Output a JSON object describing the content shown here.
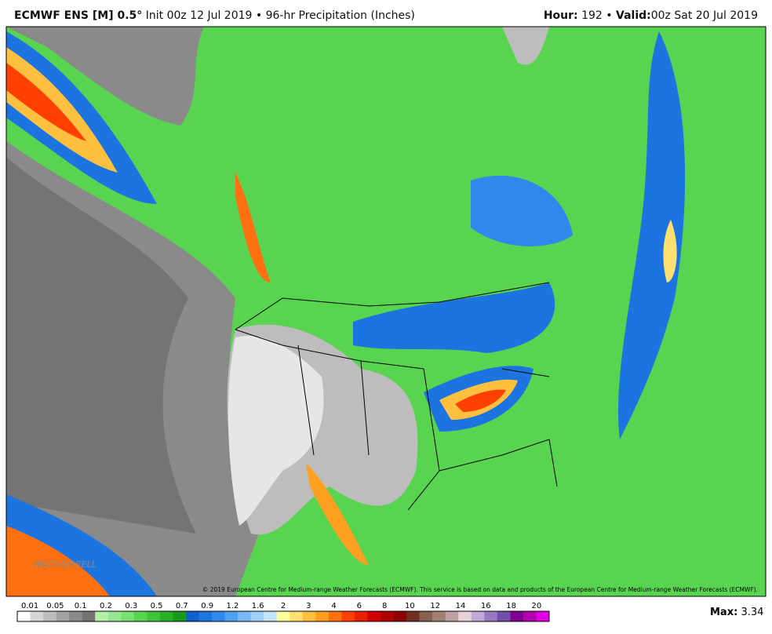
{
  "header": {
    "model": "ECMWF ENS [M] 0.5°",
    "description": "Init 00z 12 Jul 2019 • 96-hr Precipitation (Inches)",
    "hour_label": "Hour:",
    "hour": "192 •",
    "valid_label": "Valid:",
    "valid": "00z Sat 20 Jul 2019"
  },
  "map": {
    "copyright": "© 2019 European Centre for Medium-range Weather Forecasts (ECMWF). This service is based on data and products of the European Centre for Medium-range Weather Forecasts (ECMWF).",
    "watermark": "WEATHERBELL"
  },
  "legend": {
    "labels": [
      "0.01",
      "0.05",
      "0.1",
      "0.2",
      "0.3",
      "0.5",
      "0.7",
      "0.9",
      "1.2",
      "1.6",
      "2",
      "3",
      "4",
      "6",
      "8",
      "10",
      "12",
      "14",
      "16",
      "18",
      "20"
    ],
    "colors": [
      "#ffffff",
      "#d6d6d6",
      "#bdbdbd",
      "#a3a3a3",
      "#8a8a8a",
      "#747474",
      "#b4f0a8",
      "#96e890",
      "#78e070",
      "#58d450",
      "#3ec43a",
      "#28b028",
      "#1a9a1a",
      "#1060d0",
      "#1c74e0",
      "#3088ec",
      "#50a0f0",
      "#78b8f4",
      "#a0d0f8",
      "#c4e4f8",
      "#ffff9c",
      "#ffe070",
      "#ffc040",
      "#ffa020",
      "#ff7010",
      "#ff4000",
      "#e82000",
      "#d00000",
      "#b00000",
      "#900000",
      "#703020",
      "#886050",
      "#a08070",
      "#c0a0a0",
      "#e8d0d8",
      "#c0a8d8",
      "#9878c0",
      "#7050a8",
      "#800090",
      "#b000b0",
      "#e000e0"
    ]
  },
  "footer": {
    "max_label": "Max:",
    "max": "3.34"
  }
}
